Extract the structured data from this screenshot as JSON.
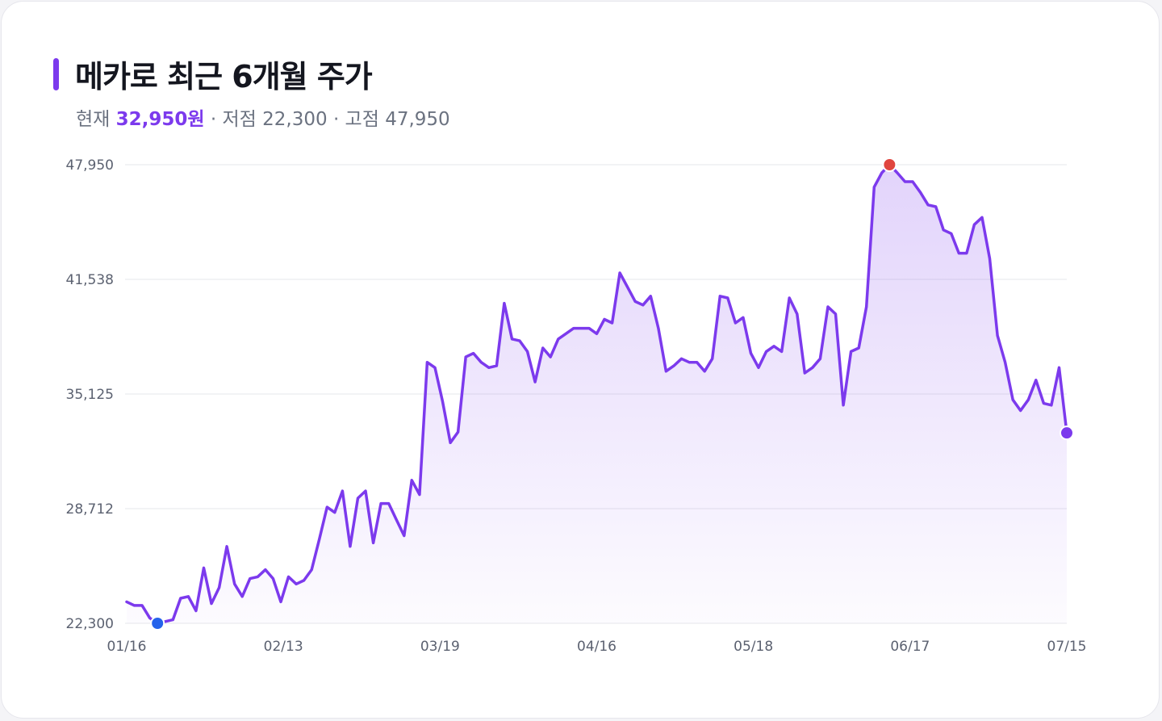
{
  "title": "메카로 최근 6개월 주가",
  "summary": {
    "current_label": "현재",
    "current_value": "32,950원",
    "low_label": "· 저점",
    "low_value": "22,300",
    "high_label": "· 고점",
    "high_value": "47,950"
  },
  "colors": {
    "accent": "#7c3aed",
    "low_marker": "#2563eb",
    "high_marker": "#e0453f",
    "grid": "#e5e7eb"
  },
  "chart_data": {
    "type": "area",
    "title": "메카로 최근 6개월 주가",
    "xlabel": "",
    "ylabel": "",
    "ylim": [
      22300,
      47950
    ],
    "y_ticks": [
      "22,300",
      "28,712",
      "35,125",
      "41,538",
      "47,950"
    ],
    "y_tick_values": [
      22300,
      28712,
      35125,
      41538,
      47950
    ],
    "x_ticks": [
      "01/16",
      "02/13",
      "03/19",
      "04/16",
      "05/18",
      "06/17",
      "07/15"
    ],
    "grid": true,
    "series": [
      {
        "values": [
          23500,
          23300,
          23300,
          22600,
          22300,
          22400,
          22500,
          23700,
          23800,
          23000,
          25400,
          23400,
          24300,
          26600,
          24500,
          23800,
          24800,
          24900,
          25300,
          24800,
          23500,
          24900,
          24500,
          24700,
          25300,
          27000,
          28800,
          28500,
          29700,
          26600,
          29300,
          29700,
          26800,
          29000,
          29000,
          28100,
          27200,
          30300,
          29500,
          36900,
          36600,
          34700,
          32400,
          33000,
          37200,
          37400,
          36900,
          36600,
          36700,
          40200,
          38200,
          38100,
          37500,
          35800,
          37700,
          37200,
          38200,
          38500,
          38800,
          38800,
          38800,
          38500,
          39300,
          39100,
          41900,
          41100,
          40300,
          40100,
          40600,
          38800,
          36400,
          36700,
          37100,
          36900,
          36900,
          36400,
          37100,
          40600,
          40500,
          39100,
          39400,
          37400,
          36600,
          37500,
          37800,
          37500,
          40500,
          39600,
          36300,
          36600,
          37100,
          40000,
          39600,
          34500,
          37500,
          37700,
          40000,
          46700,
          47500,
          47950,
          47500,
          47000,
          47000,
          46400,
          45700,
          45600,
          44300,
          44100,
          43000,
          43000,
          44600,
          45000,
          42700,
          38400,
          36900,
          34800,
          34200,
          34800,
          35900,
          34600,
          34500,
          36600,
          32950
        ]
      }
    ],
    "low_point": {
      "index": 4,
      "value": 22300
    },
    "high_point": {
      "index": 99,
      "value": 47950
    },
    "last_point": {
      "value": 32950
    }
  }
}
